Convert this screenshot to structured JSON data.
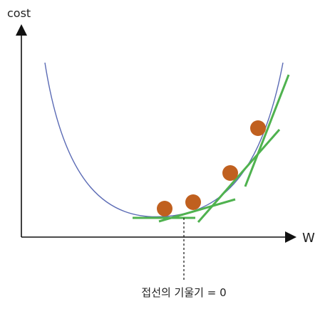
{
  "axes": {
    "y_label": "cost",
    "x_label": "W"
  },
  "annotation": {
    "text": "접선의 기울기 = 0"
  },
  "colors": {
    "axis": "#111111",
    "curve": "#5b6bb5",
    "tangent": "#4fb24f",
    "point": "#c0601f",
    "text": "#222222"
  },
  "elements": {
    "curve": "convex cost curve",
    "points": 4,
    "tangents": 4
  }
}
